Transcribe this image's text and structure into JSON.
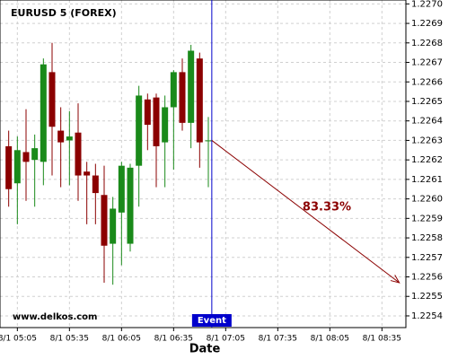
{
  "chart_data": {
    "type": "candlestick",
    "title": "EURUSD 5 (FOREX)",
    "watermark": "www.delkos.com",
    "x_label": "Date",
    "x": [
      300,
      305,
      310,
      315,
      320,
      325,
      330,
      335,
      340,
      345,
      350,
      355,
      360,
      365,
      370,
      375,
      380,
      385,
      390,
      395,
      400,
      405,
      410,
      415
    ],
    "open": [
      1.22627,
      1.22608,
      1.22624,
      1.2262,
      1.22619,
      1.22665,
      1.22635,
      1.2263,
      1.22634,
      1.22614,
      1.22612,
      1.22602,
      1.22577,
      1.22593,
      1.22577,
      1.22617,
      1.22651,
      1.22652,
      1.22629,
      1.22647,
      1.22665,
      1.22639,
      1.22672,
      1.2263
    ],
    "high": [
      1.22635,
      1.22632,
      1.22646,
      1.22633,
      1.22672,
      1.2268,
      1.22647,
      1.22645,
      1.22649,
      1.22619,
      1.22618,
      1.22617,
      1.22601,
      1.22619,
      1.22618,
      1.22658,
      1.22654,
      1.22654,
      1.22653,
      1.22666,
      1.22672,
      1.22679,
      1.22675,
      1.22642
    ],
    "low": [
      1.22596,
      1.22587,
      1.22599,
      1.22596,
      1.22607,
      1.22612,
      1.22606,
      1.22607,
      1.22599,
      1.22587,
      1.22587,
      1.22557,
      1.22556,
      1.22566,
      1.22573,
      1.22596,
      1.22625,
      1.22606,
      1.22606,
      1.22615,
      1.22635,
      1.22626,
      1.22616,
      1.22606
    ],
    "close": [
      1.22605,
      1.22625,
      1.22619,
      1.22626,
      1.22669,
      1.22637,
      1.22629,
      1.22632,
      1.22612,
      1.22612,
      1.22603,
      1.22576,
      1.22595,
      1.22617,
      1.22616,
      1.22653,
      1.22638,
      1.22627,
      1.22647,
      1.22665,
      1.22639,
      1.22676,
      1.22629,
      1.2263
    ],
    "up_color": "#1a8a1a",
    "down_color": "#8b0000",
    "xlim": [
      295,
      528.8
    ],
    "ylim": [
      1.22534,
      1.22702
    ],
    "xticks": [
      {
        "value": 305,
        "label": "8/1 05:05"
      },
      {
        "value": 335,
        "label": "8/1 05:35"
      },
      {
        "value": 365,
        "label": "8/1 06:05"
      },
      {
        "value": 395,
        "label": "8/1 06:35"
      },
      {
        "value": 425,
        "label": "8/1 07:05"
      },
      {
        "value": 455,
        "label": "8/1 07:35"
      },
      {
        "value": 485,
        "label": "8/1 08:05"
      },
      {
        "value": 515,
        "label": "8/1 08:35"
      }
    ],
    "yticks": [
      1.2254,
      1.2255,
      1.2256,
      1.2257,
      1.2258,
      1.2259,
      {
        "value": 1.226,
        "label": "1.2260"
      },
      1.2261,
      1.2262,
      1.2263,
      1.2264,
      1.2265,
      1.2266,
      1.2267,
      1.2268,
      1.2269,
      {
        "value": 1.227,
        "label": "1.2270"
      }
    ],
    "grid": true,
    "event": {
      "label": "Event",
      "x": 417,
      "color": "#0000cc"
    },
    "forecast": {
      "label": "83.33%",
      "x": [
        417,
        525
      ],
      "y": [
        1.2263,
        1.22557
      ],
      "color": "#8b0000"
    }
  }
}
